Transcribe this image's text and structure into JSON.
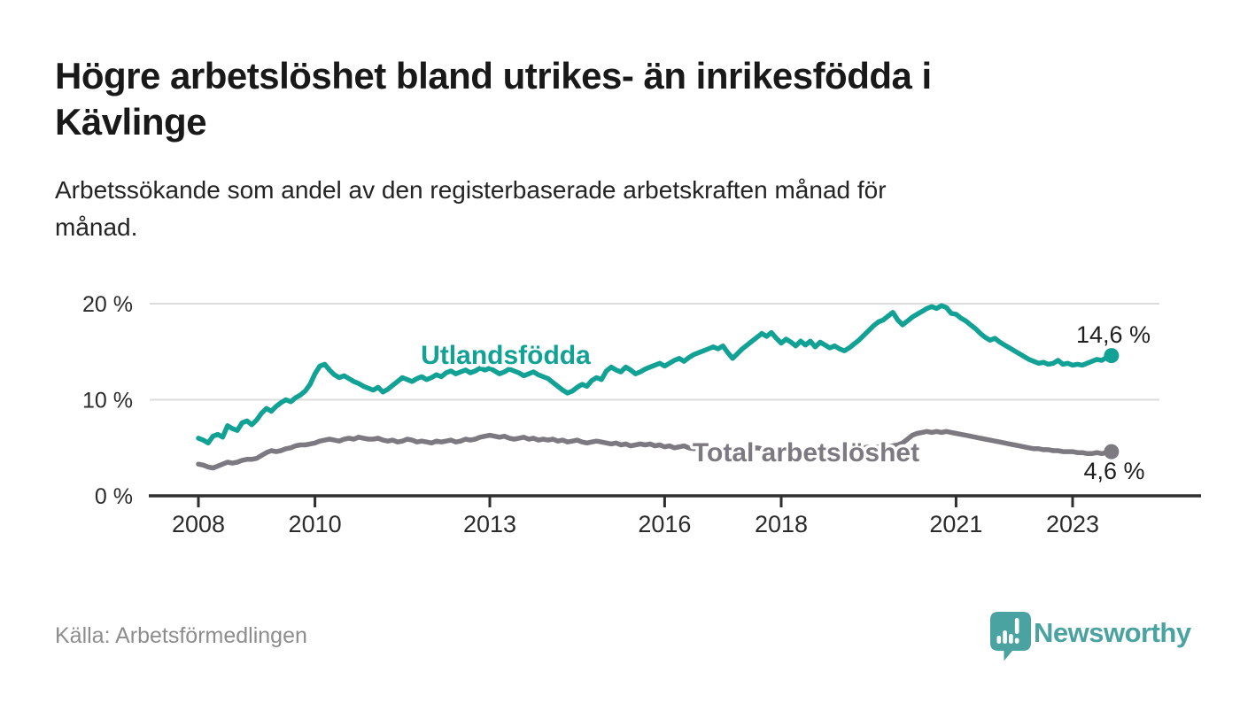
{
  "header": {
    "title_line1": "Högre arbetslöshet bland utrikes- än inrikesfödda i",
    "title_line2": "Kävlinge",
    "subtitle_line1": "Arbetssökande som andel av den registerbaserade arbetskraften månad för",
    "subtitle_line2": "månad."
  },
  "footer": {
    "source": "Källa: Arbetsförmedlingen",
    "brand": "Newsworthy",
    "logo_icon": "bar-chart-speech-bubble-icon"
  },
  "colors": {
    "teal_series": "#12a195",
    "gray_series": "#7c7980",
    "brand_teal": "#4aa3a0",
    "grid": "#dcdcdc",
    "axis": "#2e2e2e",
    "title_text": "#191919",
    "muted_text": "#8d8d8d"
  },
  "chart_data": {
    "type": "line",
    "title": "Högre arbetslöshet bland utrikes- än inrikesfödda i Kävlinge",
    "subtitle": "Arbetssökande som andel av den registerbaserade arbetskraften månad för månad.",
    "unit": "%",
    "x_start_year": 2008,
    "points_per_year": 12,
    "x_end_label_period": "2023-09",
    "grid": "horizontal",
    "legend": "inline-labels",
    "ylim": [
      0,
      21.5
    ],
    "y_ticks": [
      {
        "value": 0,
        "label": "0 %"
      },
      {
        "value": 10,
        "label": "10 %"
      },
      {
        "value": 20,
        "label": "20 %"
      }
    ],
    "x_ticks": [
      {
        "year": 2008,
        "label": "2008"
      },
      {
        "year": 2010,
        "label": "2010"
      },
      {
        "year": 2013,
        "label": "2013"
      },
      {
        "year": 2016,
        "label": "2016"
      },
      {
        "year": 2018,
        "label": "2018"
      },
      {
        "year": 2021,
        "label": "2021"
      },
      {
        "year": 2023,
        "label": "2023"
      }
    ],
    "series": [
      {
        "name": "Utlandsfödda",
        "color": "#12a195",
        "end_label": "14,6 %",
        "end_value": 14.6,
        "values": [
          6.0,
          5.8,
          5.5,
          6.2,
          6.4,
          6.1,
          7.3,
          7.0,
          6.8,
          7.6,
          7.8,
          7.4,
          7.9,
          8.6,
          9.1,
          8.8,
          9.3,
          9.7,
          10.0,
          9.8,
          10.2,
          10.5,
          10.9,
          11.6,
          12.7,
          13.5,
          13.7,
          13.1,
          12.6,
          12.3,
          12.5,
          12.2,
          11.9,
          11.7,
          11.4,
          11.2,
          11.0,
          11.3,
          10.8,
          11.1,
          11.5,
          11.9,
          12.3,
          12.1,
          11.9,
          12.2,
          12.4,
          12.1,
          12.3,
          12.6,
          12.4,
          12.8,
          13.0,
          12.7,
          12.9,
          13.1,
          12.8,
          13.0,
          13.3,
          13.1,
          13.3,
          13.0,
          12.7,
          12.9,
          13.2,
          13.0,
          12.8,
          12.5,
          12.7,
          12.9,
          12.6,
          12.4,
          12.2,
          11.8,
          11.4,
          11.0,
          10.7,
          10.9,
          11.3,
          11.6,
          11.4,
          12.0,
          12.3,
          12.1,
          13.0,
          13.4,
          13.1,
          12.9,
          13.4,
          13.1,
          12.7,
          12.9,
          13.2,
          13.4,
          13.6,
          13.8,
          13.5,
          13.8,
          14.1,
          14.3,
          14.0,
          14.4,
          14.7,
          14.9,
          15.1,
          15.3,
          15.5,
          15.3,
          15.6,
          14.9,
          14.3,
          14.8,
          15.3,
          15.7,
          16.1,
          16.5,
          16.9,
          16.6,
          17.0,
          16.4,
          15.9,
          16.3,
          16.0,
          15.6,
          16.1,
          15.7,
          16.1,
          15.5,
          16.0,
          15.7,
          15.4,
          15.6,
          15.3,
          15.1,
          15.4,
          15.8,
          16.2,
          16.7,
          17.2,
          17.7,
          18.1,
          18.3,
          18.7,
          19.1,
          18.3,
          17.8,
          18.2,
          18.6,
          18.9,
          19.2,
          19.5,
          19.7,
          19.5,
          19.8,
          19.6,
          19.0,
          18.9,
          18.5,
          18.2,
          17.8,
          17.4,
          16.9,
          16.5,
          16.2,
          16.4,
          16.0,
          15.7,
          15.4,
          15.1,
          14.8,
          14.5,
          14.2,
          14.0,
          13.8,
          13.9,
          13.7,
          13.8,
          14.1,
          13.7,
          13.8,
          13.6,
          13.7,
          13.6,
          13.8,
          14.0,
          14.2,
          14.1,
          14.4,
          14.6
        ]
      },
      {
        "name": "Total arbetslöshet",
        "color": "#7c7980",
        "end_label": "4,6 %",
        "end_value": 4.6,
        "values": [
          3.3,
          3.2,
          3.0,
          2.9,
          3.1,
          3.3,
          3.5,
          3.4,
          3.5,
          3.7,
          3.8,
          3.8,
          3.9,
          4.2,
          4.5,
          4.7,
          4.6,
          4.7,
          4.9,
          5.0,
          5.2,
          5.3,
          5.3,
          5.4,
          5.5,
          5.7,
          5.8,
          5.9,
          5.8,
          5.7,
          5.9,
          6.0,
          5.9,
          6.1,
          6.0,
          5.9,
          5.9,
          6.0,
          5.8,
          5.7,
          5.8,
          5.6,
          5.7,
          5.9,
          5.8,
          5.6,
          5.7,
          5.6,
          5.5,
          5.7,
          5.6,
          5.7,
          5.8,
          5.6,
          5.7,
          5.9,
          5.8,
          5.9,
          6.1,
          6.2,
          6.3,
          6.2,
          6.1,
          6.2,
          6.0,
          5.9,
          6.0,
          6.1,
          5.9,
          6.0,
          5.8,
          5.9,
          5.8,
          5.9,
          5.7,
          5.8,
          5.6,
          5.7,
          5.8,
          5.6,
          5.5,
          5.6,
          5.7,
          5.6,
          5.5,
          5.4,
          5.5,
          5.3,
          5.4,
          5.2,
          5.3,
          5.4,
          5.3,
          5.4,
          5.2,
          5.3,
          5.1,
          5.2,
          5.0,
          5.1,
          5.2,
          5.0,
          4.9,
          5.0,
          5.1,
          5.0,
          4.9,
          5.0,
          4.9,
          5.0,
          4.8,
          4.9,
          5.0,
          4.8,
          4.9,
          5.0,
          4.9,
          4.8,
          4.9,
          4.8,
          4.7,
          4.8,
          4.9,
          4.8,
          4.7,
          4.8,
          4.9,
          4.8,
          4.7,
          4.8,
          4.7,
          4.8,
          4.9,
          4.8,
          4.9,
          5.0,
          4.9,
          5.0,
          5.1,
          5.0,
          5.1,
          5.0,
          5.1,
          5.2,
          5.3,
          5.5,
          5.9,
          6.3,
          6.5,
          6.6,
          6.7,
          6.6,
          6.7,
          6.6,
          6.7,
          6.6,
          6.5,
          6.4,
          6.3,
          6.2,
          6.1,
          6.0,
          5.9,
          5.8,
          5.7,
          5.6,
          5.5,
          5.4,
          5.3,
          5.2,
          5.1,
          5.0,
          4.9,
          4.9,
          4.8,
          4.8,
          4.7,
          4.7,
          4.6,
          4.6,
          4.6,
          4.5,
          4.5,
          4.4,
          4.4,
          4.5,
          4.4,
          4.5,
          4.6
        ]
      }
    ]
  }
}
